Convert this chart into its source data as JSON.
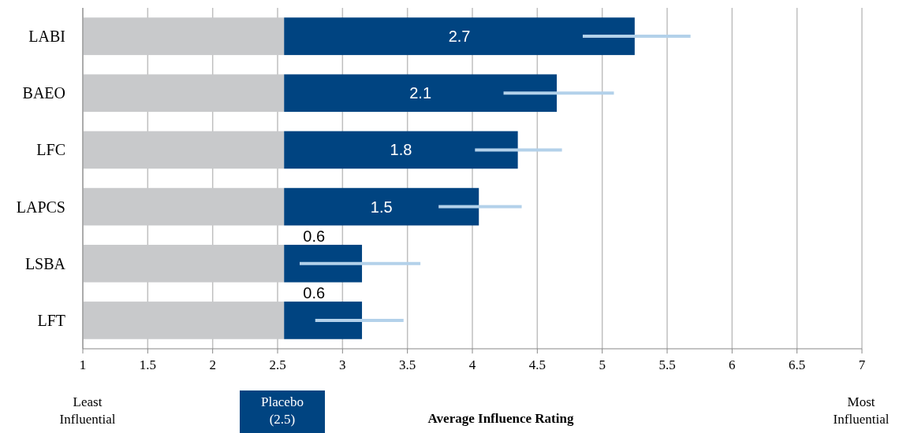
{
  "chart_data": {
    "type": "bar",
    "orientation": "horizontal",
    "categories": [
      "LABI",
      "BAEO",
      "LFC",
      "LAPCS",
      "LSBA",
      "LFT"
    ],
    "series": [
      {
        "color": "#c8c9cb",
        "values": [
          1.55,
          1.55,
          1.55,
          1.55,
          1.55,
          1.55
        ],
        "base": [
          1,
          1,
          1,
          1,
          1,
          1
        ]
      },
      {
        "color": "#004481",
        "values": [
          2.7,
          2.1,
          1.8,
          1.5,
          0.6,
          0.6
        ],
        "value_labels": [
          "2.7",
          "2.1",
          "1.8",
          "1.5",
          "0.6",
          "0.6"
        ],
        "base": [
          2.55,
          2.55,
          2.55,
          2.55,
          2.55,
          2.55
        ],
        "errors": [
          [
            4.85,
            5.68
          ],
          [
            4.24,
            5.09
          ],
          [
            4.02,
            4.69
          ],
          [
            3.74,
            4.38
          ],
          [
            2.67,
            3.6
          ],
          [
            2.79,
            3.47
          ]
        ]
      }
    ],
    "xlim": [
      1,
      7
    ],
    "xticks": [
      1,
      1.5,
      2,
      2.5,
      3,
      3.5,
      4,
      4.5,
      5,
      5.5,
      6,
      6.5,
      7
    ],
    "grid": "x",
    "xlabel": "Average Influence Rating",
    "annotations": [
      "Least\nInfluential",
      "Placebo\n(2.5)",
      "Most\nInfluential"
    ]
  }
}
